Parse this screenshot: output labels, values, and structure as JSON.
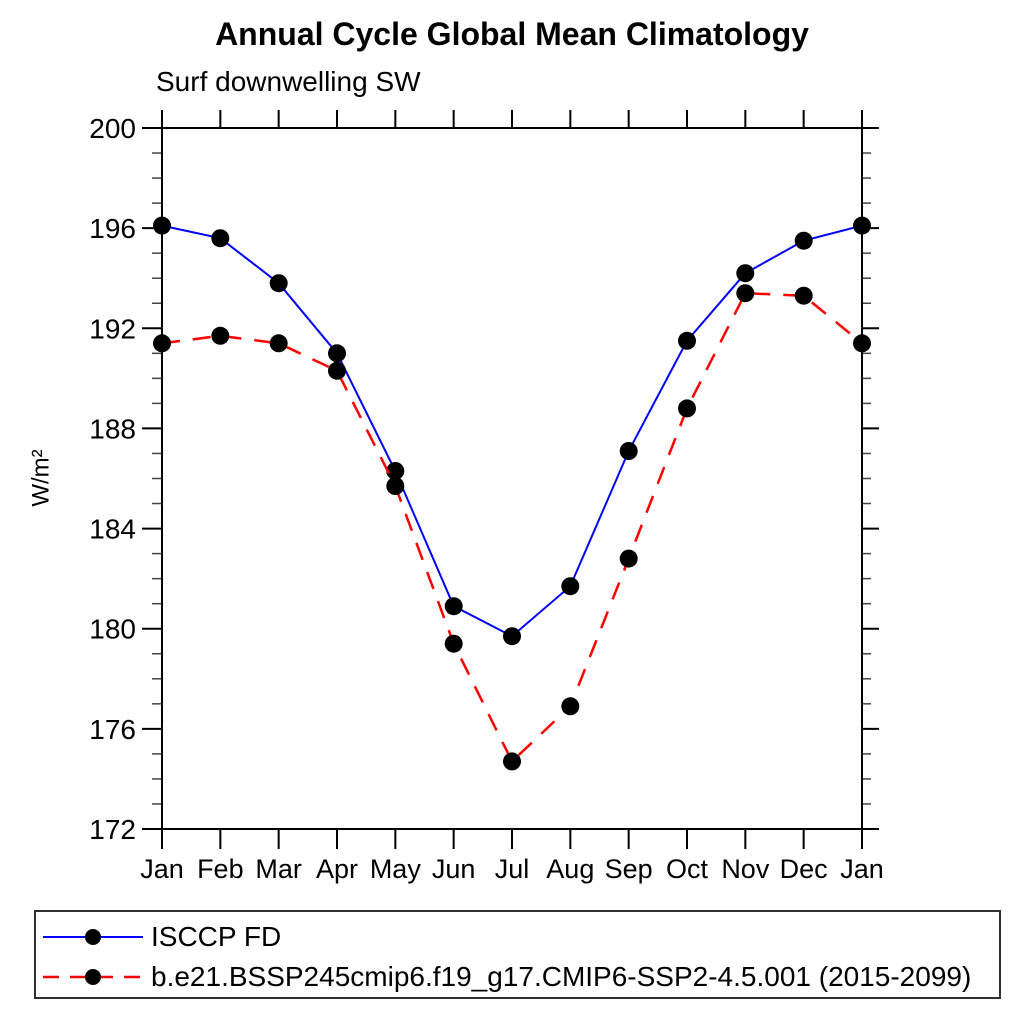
{
  "title": "Annual Cycle Global Mean Climatology",
  "subtitle": "Surf downwelling SW",
  "chart_data": {
    "type": "line",
    "categories": [
      "Jan",
      "Feb",
      "Mar",
      "Apr",
      "May",
      "Jun",
      "Jul",
      "Aug",
      "Sep",
      "Oct",
      "Nov",
      "Dec",
      "Jan"
    ],
    "ylabel": "W/m²",
    "ylim": [
      172,
      200
    ],
    "ytick_major": 4,
    "ytick_minor": 1,
    "ytick_labels": [
      "172",
      "176",
      "180",
      "184",
      "188",
      "192",
      "196",
      "200"
    ],
    "grid": false,
    "legend_position": "bottom",
    "axis_color": "#000000",
    "marker_color": "#000000",
    "series": [
      {
        "name": "ISCCP FD",
        "color": "#0000ff",
        "line_style": "solid",
        "marker": "filled-circle",
        "values": [
          196.1,
          195.6,
          193.8,
          191.0,
          186.3,
          180.9,
          179.7,
          181.7,
          187.1,
          191.5,
          194.2,
          195.5,
          196.1
        ]
      },
      {
        "name": "b.e21.BSSP245cmip6.f19_g17.CMIP6-SSP2-4.5.001 (2015-2099)",
        "color": "#ff0000",
        "line_style": "dashed",
        "marker": "filled-circle",
        "values": [
          191.4,
          191.7,
          191.4,
          190.3,
          185.7,
          179.4,
          174.7,
          176.9,
          182.8,
          188.8,
          193.4,
          193.3,
          191.4
        ]
      }
    ]
  }
}
